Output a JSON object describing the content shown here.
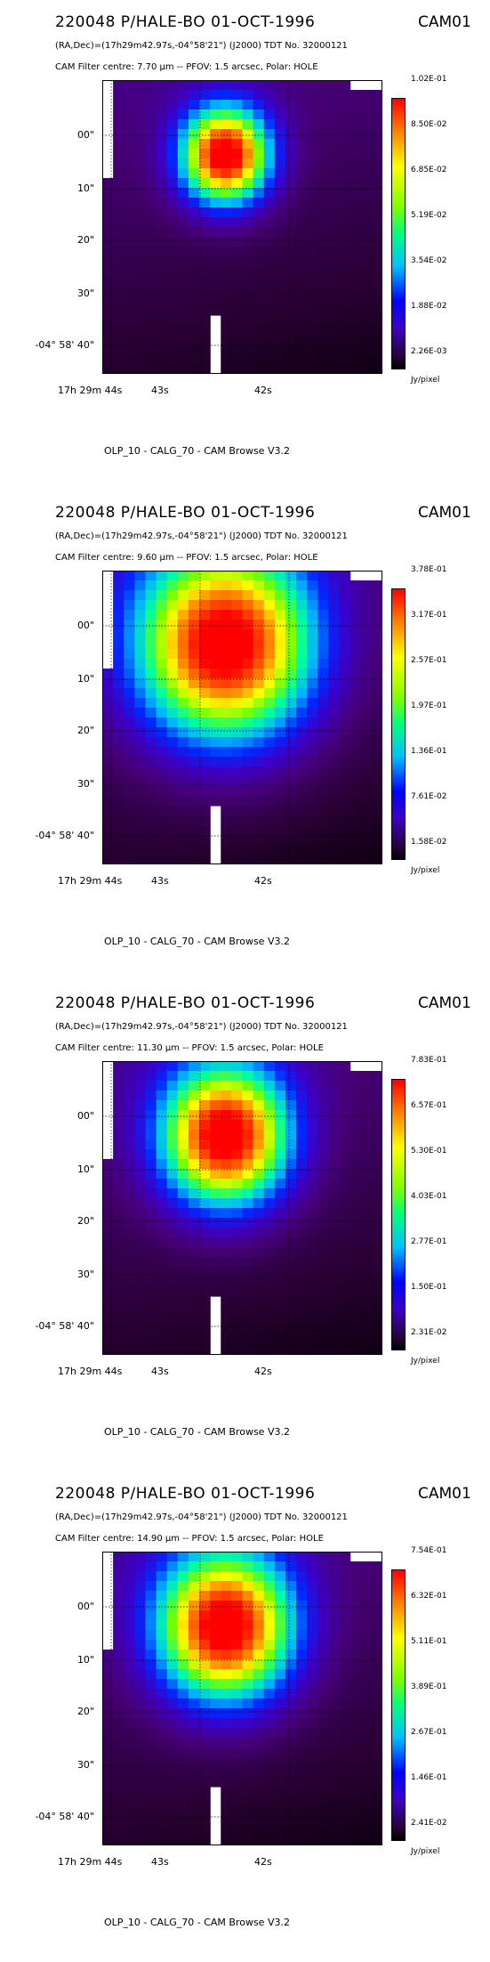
{
  "panels": [
    {
      "title": "220048 P/HALE-BO 01-OCT-1996",
      "cam": "CAM01",
      "line2": "(RA,Dec)=(17h29m42.97s,-04°58'21\") (J2000) TDT No. 32000121",
      "line3": "CAM  Filter  centre:  7.70 μm  --    PFOV:   1.5 arcsec, Polar: HOLE",
      "y_ticks": [
        "00\"",
        "10\"",
        "20\"",
        "30\"",
        "-04° 58' 40\""
      ],
      "x_ticks": [
        "17h 29m 44s",
        "43s",
        "42s"
      ],
      "colorbar_ticks": [
        "1.02E-01",
        "8.50E-02",
        "6.85E-02",
        "5.19E-02",
        "3.54E-02",
        "1.88E-02",
        "2.26E-03"
      ],
      "colorbar_unit": "Jy/pixel",
      "footer": "OLP_10    - CALG_70    - CAM Browse V3.2"
    },
    {
      "title": "220048 P/HALE-BO 01-OCT-1996",
      "cam": "CAM01",
      "line2": "(RA,Dec)=(17h29m42.97s,-04°58'21\") (J2000) TDT No. 32000121",
      "line3": "CAM  Filter  centre:  9.60 μm  --    PFOV:   1.5 arcsec, Polar: HOLE",
      "y_ticks": [
        "00\"",
        "10\"",
        "20\"",
        "30\"",
        "-04° 58' 40\""
      ],
      "x_ticks": [
        "17h 29m 44s",
        "43s",
        "42s"
      ],
      "colorbar_ticks": [
        "3.78E-01",
        "3.17E-01",
        "2.57E-01",
        "1.97E-01",
        "1.36E-01",
        "7.61E-02",
        "1.58E-02"
      ],
      "colorbar_unit": "Jy/pixel",
      "footer": "OLP_10    - CALG_70    - CAM Browse V3.2"
    },
    {
      "title": "220048 P/HALE-BO 01-OCT-1996",
      "cam": "CAM01",
      "line2": "(RA,Dec)=(17h29m42.97s,-04°58'21\") (J2000) TDT No. 32000121",
      "line3": "CAM  Filter  centre: 11.30 μm  --    PFOV:   1.5 arcsec, Polar: HOLE",
      "y_ticks": [
        "00\"",
        "10\"",
        "20\"",
        "30\"",
        "-04° 58' 40\""
      ],
      "x_ticks": [
        "17h 29m 44s",
        "43s",
        "42s"
      ],
      "colorbar_ticks": [
        "7.83E-01",
        "6.57E-01",
        "5.30E-01",
        "4.03E-01",
        "2.77E-01",
        "1.50E-01",
        "2.31E-02"
      ],
      "colorbar_unit": "Jy/pixel",
      "footer": "OLP_10    - CALG_70    - CAM Browse V3.2"
    },
    {
      "title": "220048 P/HALE-BO 01-OCT-1996",
      "cam": "CAM01",
      "line2": "(RA,Dec)=(17h29m42.97s,-04°58'21\") (J2000) TDT No. 32000121",
      "line3": "CAM  Filter  centre: 14.90 μm  --    PFOV:   1.5 arcsec, Polar: HOLE",
      "y_ticks": [
        "00\"",
        "10\"",
        "20\"",
        "30\"",
        "-04° 58' 40\""
      ],
      "x_ticks": [
        "17h 29m 44s",
        "43s",
        "42s"
      ],
      "colorbar_ticks": [
        "7.54E-01",
        "6.32E-01",
        "5.11E-01",
        "3.89E-01",
        "2.67E-01",
        "1.46E-01",
        "2.41E-02"
      ],
      "colorbar_unit": "Jy/pixel",
      "footer": "OLP_10    - CALG_70    - CAM Browse V3.2"
    }
  ]
}
